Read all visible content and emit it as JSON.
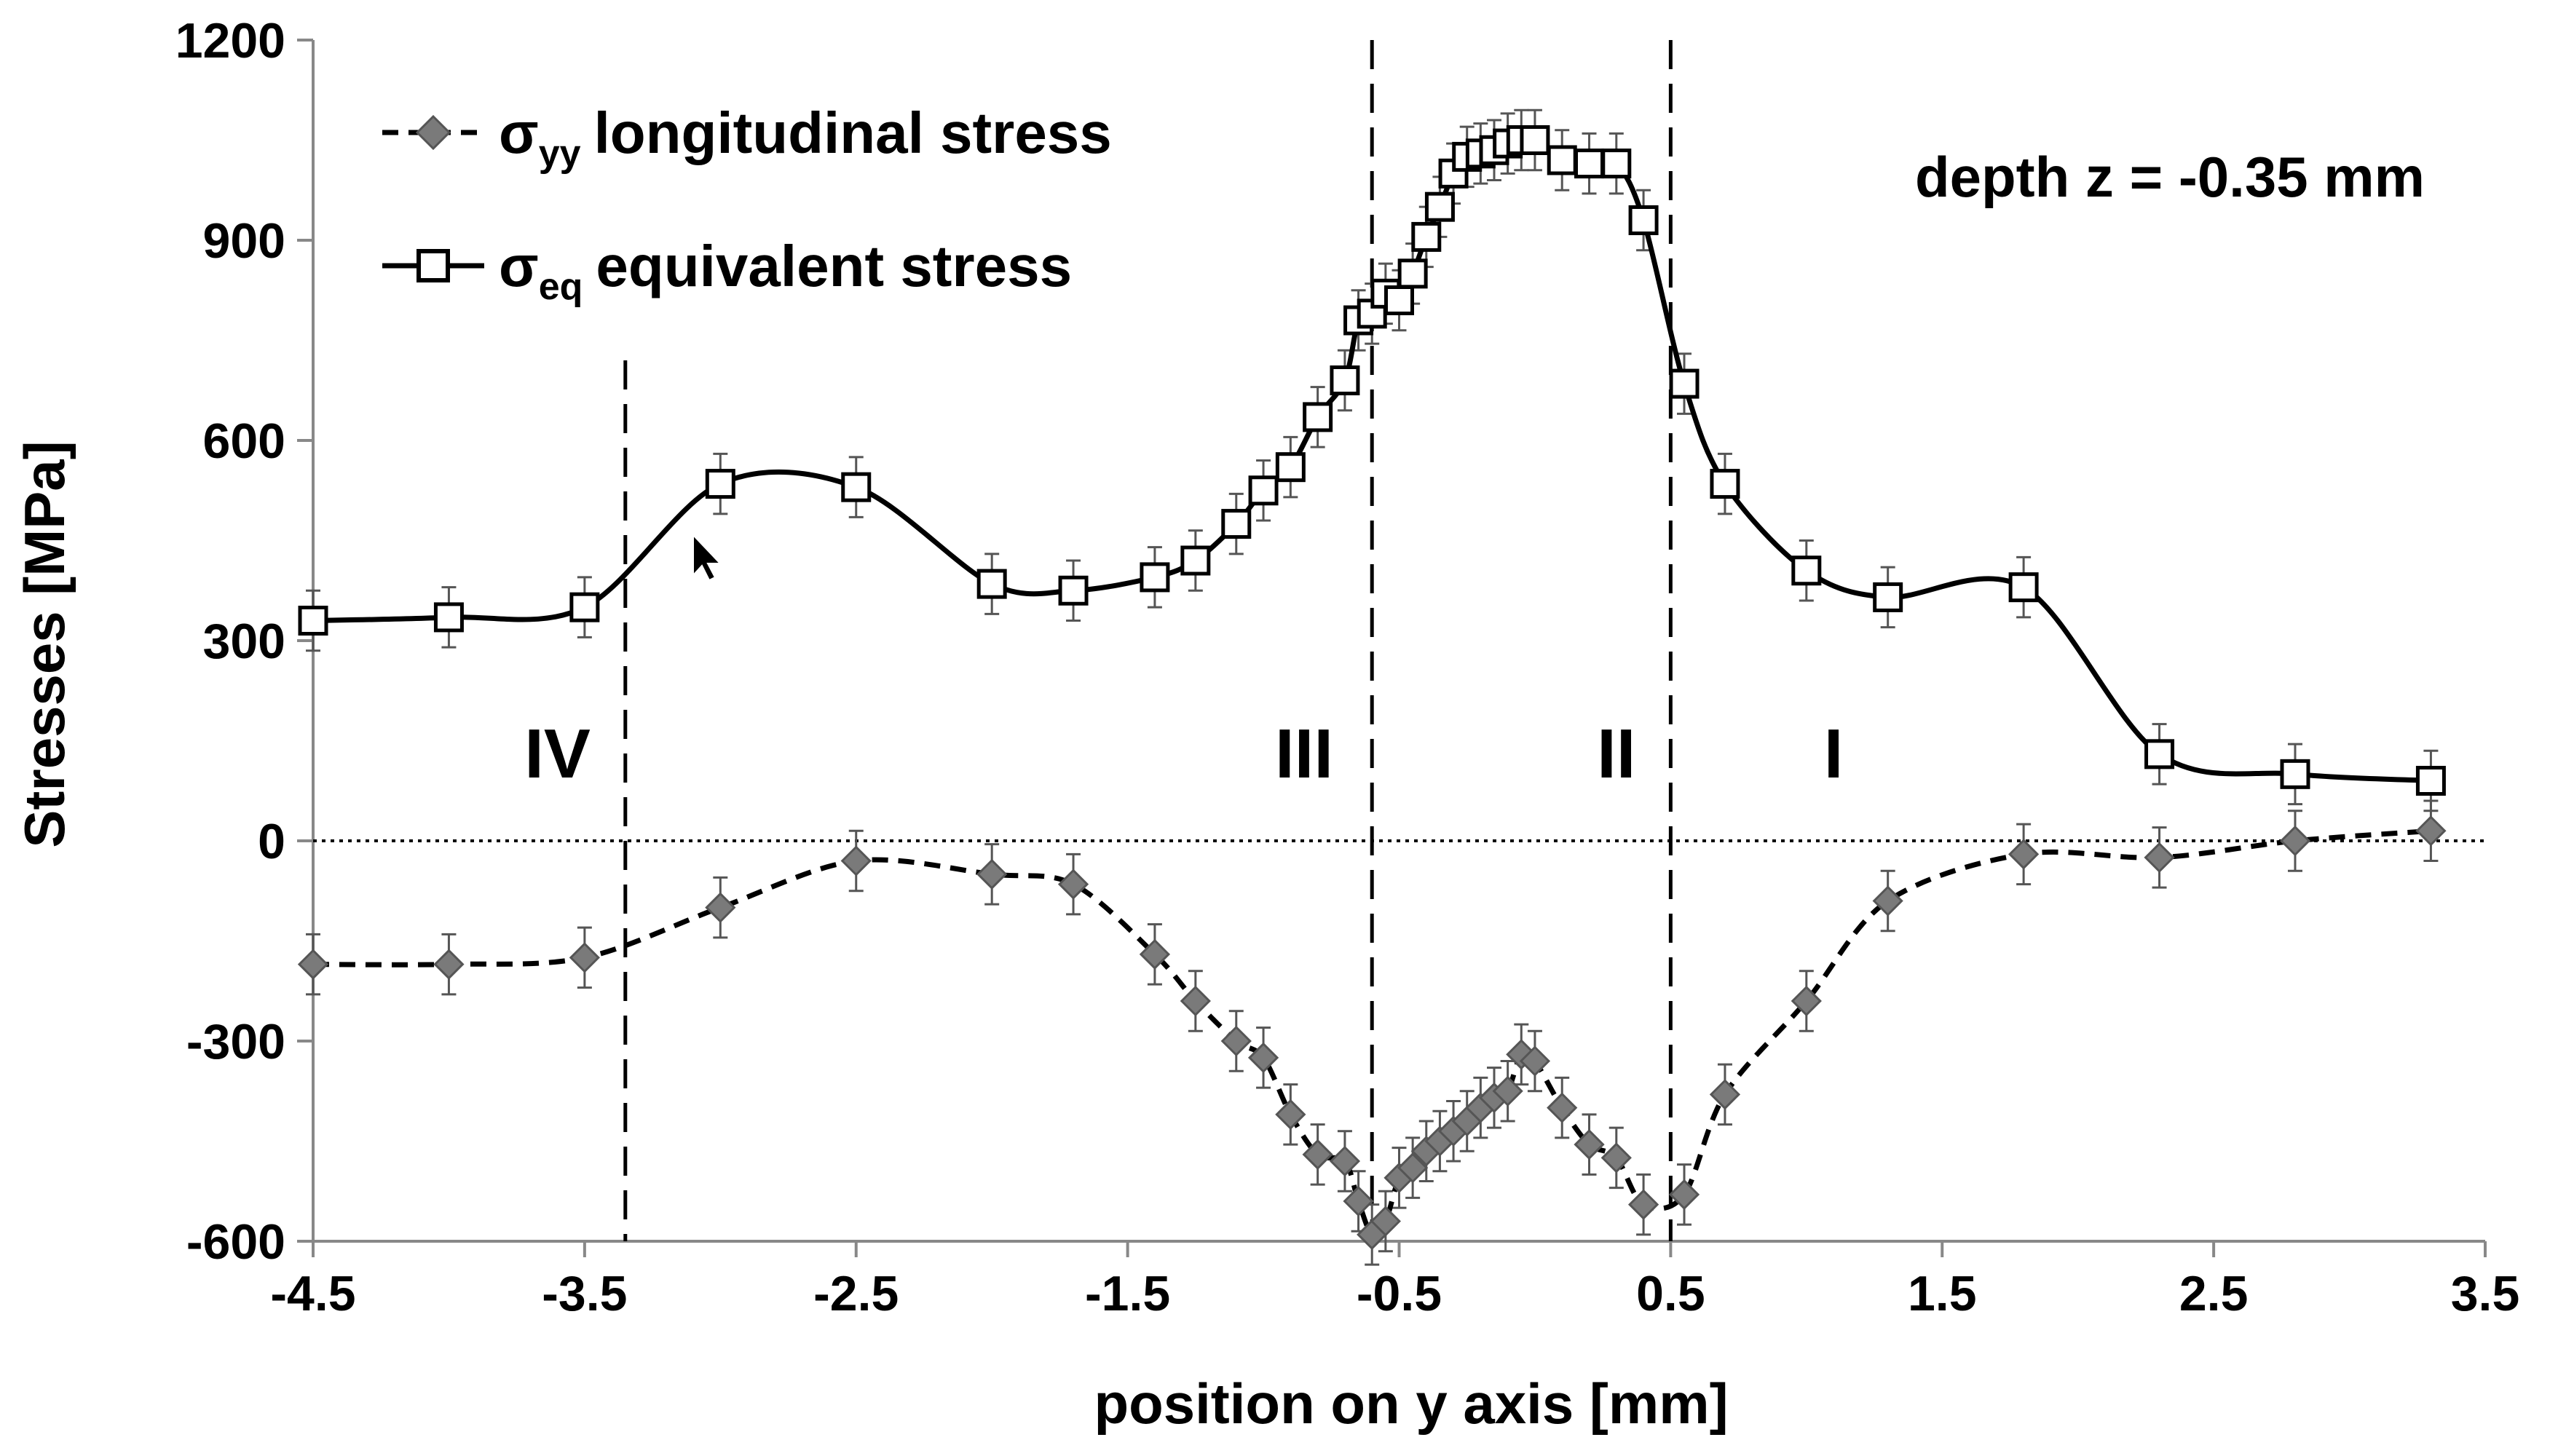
{
  "chart_data": {
    "type": "line",
    "xlabel": "position on y axis [mm]",
    "ylabel": "Stresses [MPa]",
    "xlim": [
      -4.5,
      3.5
    ],
    "ylim": [
      -600,
      1200
    ],
    "xticks": [
      -4.5,
      -3.5,
      -2.5,
      -1.5,
      -0.5,
      0.5,
      1.5,
      2.5,
      3.5
    ],
    "xtick_labels": [
      "-4.5",
      "-3.5",
      "-2.5",
      "-1.5",
      "-0.5",
      "0.5",
      "1.5",
      "2.5",
      "3.5"
    ],
    "yticks": [
      -600,
      -300,
      0,
      300,
      600,
      900,
      1200
    ],
    "ytick_labels": [
      "-600",
      "-300",
      "0",
      "300",
      "600",
      "900",
      "1200"
    ],
    "legend_position": "top-left",
    "annotation": "depth z = -0.35 mm",
    "zero_line": true,
    "region_boundaries": [
      -3.35,
      -0.6,
      0.5
    ],
    "regions": [
      {
        "label": "IV",
        "x": -3.6
      },
      {
        "label": "III",
        "x": -0.85
      },
      {
        "label": "II",
        "x": 0.3
      },
      {
        "label": "I",
        "x": 1.1
      }
    ],
    "series": [
      {
        "name": "σyy longitudinal stress",
        "symbol": "σ",
        "subscript": "yy",
        "label_text": "longitudinal stress",
        "line_style": "dashed",
        "marker": "diamond",
        "x": [
          -4.5,
          -4.0,
          -3.5,
          -3.0,
          -2.5,
          -2.0,
          -1.7,
          -1.4,
          -1.25,
          -1.1,
          -1.0,
          -0.9,
          -0.8,
          -0.7,
          -0.65,
          -0.6,
          -0.55,
          -0.5,
          -0.45,
          -0.4,
          -0.35,
          -0.3,
          -0.25,
          -0.2,
          -0.15,
          -0.1,
          -0.05,
          0.0,
          0.1,
          0.2,
          0.3,
          0.4,
          0.55,
          0.7,
          1.0,
          1.3,
          1.8,
          2.3,
          2.8,
          3.3
        ],
        "values": [
          -185,
          -185,
          -175,
          -100,
          -30,
          -50,
          -65,
          -170,
          -240,
          -300,
          -325,
          -410,
          -470,
          -480,
          -540,
          -590,
          -570,
          -505,
          -490,
          -465,
          -450,
          -435,
          -420,
          -400,
          -385,
          -375,
          -320,
          -330,
          -400,
          -455,
          -475,
          -545,
          -530,
          -380,
          -240,
          -90,
          -20,
          -25,
          0,
          15
        ],
        "error": 45
      },
      {
        "name": "σeq equivalent stress",
        "symbol": "σ",
        "subscript": "eq",
        "label_text": "equivalent stress",
        "line_style": "solid",
        "marker": "open-square",
        "x": [
          -4.5,
          -4.0,
          -3.5,
          -3.0,
          -2.5,
          -2.0,
          -1.7,
          -1.4,
          -1.25,
          -1.1,
          -1.0,
          -0.9,
          -0.8,
          -0.7,
          -0.65,
          -0.6,
          -0.55,
          -0.5,
          -0.45,
          -0.4,
          -0.35,
          -0.3,
          -0.25,
          -0.2,
          -0.15,
          -0.1,
          -0.05,
          0.0,
          0.1,
          0.2,
          0.3,
          0.4,
          0.55,
          0.7,
          1.0,
          1.3,
          1.8,
          2.3,
          2.8,
          3.3
        ],
        "values": [
          330,
          335,
          350,
          535,
          530,
          385,
          375,
          395,
          420,
          475,
          525,
          560,
          635,
          690,
          780,
          790,
          820,
          810,
          850,
          905,
          950,
          1000,
          1025,
          1030,
          1035,
          1045,
          1050,
          1050,
          1020,
          1015,
          1015,
          930,
          685,
          535,
          405,
          365,
          380,
          130,
          100,
          90
        ],
        "error": 45
      }
    ]
  },
  "colors": {
    "eq_line": "#000000",
    "yy_line": "#000000",
    "diamond_fill": "#7a7a7a",
    "error_bar": "#555555"
  }
}
